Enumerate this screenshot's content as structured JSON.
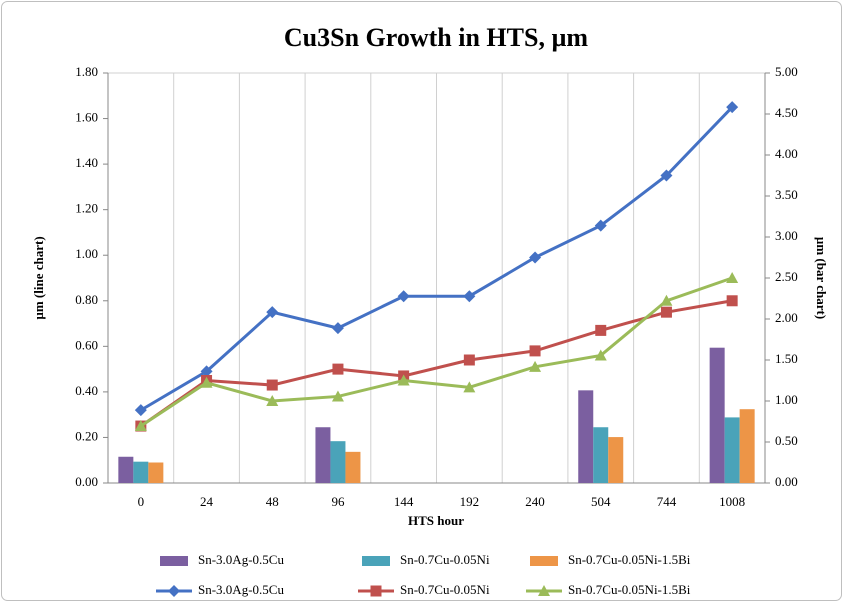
{
  "chart_data": {
    "type": "combo",
    "title": "Cu3Sn Growth in HTS, µm",
    "x_label": "HTS hour",
    "y_label": "µm (line chart)",
    "y2_label": "µm (bar chart)",
    "categories": [
      "0",
      "24",
      "48",
      "96",
      "144",
      "192",
      "240",
      "504",
      "744",
      "1008"
    ],
    "grid": "x",
    "ylim": [
      0,
      1.8
    ],
    "yticks": [
      {
        "value": 0,
        "label": "0.00"
      },
      {
        "value": 0.2,
        "label": "0.20"
      },
      {
        "value": 0.4,
        "label": "0.40"
      },
      {
        "value": 0.6,
        "label": "0.60"
      },
      {
        "value": 0.8,
        "label": "0.80"
      },
      {
        "value": 1.0,
        "label": "1.00"
      },
      {
        "value": 1.2,
        "label": "1.20"
      },
      {
        "value": 1.4,
        "label": "1.40"
      },
      {
        "value": 1.6,
        "label": "1.60"
      },
      {
        "value": 1.8,
        "label": "1.80"
      }
    ],
    "y2lim": [
      0,
      5
    ],
    "y2ticks": [
      {
        "value": 0,
        "label": "0.00"
      },
      {
        "value": 0.5,
        "label": "0.50"
      },
      {
        "value": 1.0,
        "label": "1.00"
      },
      {
        "value": 1.5,
        "label": "1.50"
      },
      {
        "value": 2.0,
        "label": "2.00"
      },
      {
        "value": 2.5,
        "label": "2.50"
      },
      {
        "value": 3.0,
        "label": "3.00"
      },
      {
        "value": 3.5,
        "label": "3.50"
      },
      {
        "value": 4.0,
        "label": "4.00"
      },
      {
        "value": 4.5,
        "label": "4.50"
      },
      {
        "value": 5.0,
        "label": "5.00"
      }
    ],
    "series": [
      {
        "name": "Sn-3.0Ag-0.5Cu",
        "type": "bar",
        "axis": "y2",
        "color": "#7b5fa0",
        "values": [
          0.32,
          null,
          null,
          0.68,
          null,
          null,
          null,
          1.13,
          null,
          1.65
        ]
      },
      {
        "name": "Sn-0.7Cu-0.05Ni",
        "type": "bar",
        "axis": "y2",
        "color": "#4aa3b9",
        "values": [
          0.26,
          null,
          null,
          0.51,
          null,
          null,
          null,
          0.68,
          null,
          0.8
        ]
      },
      {
        "name": "Sn-0.7Cu-0.05Ni-1.5Bi",
        "type": "bar",
        "axis": "y2",
        "color": "#ed9547",
        "values": [
          0.25,
          null,
          null,
          0.38,
          null,
          null,
          null,
          0.56,
          null,
          0.9
        ]
      },
      {
        "name": "Sn-3.0Ag-0.5Cu",
        "type": "line",
        "marker": "diamond",
        "color": "#4471c4",
        "values": [
          0.32,
          0.49,
          0.75,
          0.68,
          0.82,
          0.82,
          0.99,
          1.13,
          1.35,
          1.65
        ]
      },
      {
        "name": "Sn-0.7Cu-0.05Ni",
        "type": "line",
        "marker": "square",
        "color": "#c0504d",
        "values": [
          0.25,
          0.45,
          0.43,
          0.5,
          0.47,
          0.54,
          0.58,
          0.67,
          0.75,
          0.8
        ]
      },
      {
        "name": "Sn-0.7Cu-0.05Ni-1.5Bi",
        "type": "line",
        "marker": "triangle",
        "color": "#9bbb59",
        "values": [
          0.25,
          0.44,
          0.36,
          0.38,
          0.45,
          0.42,
          0.51,
          0.56,
          0.8,
          0.9
        ]
      }
    ]
  }
}
